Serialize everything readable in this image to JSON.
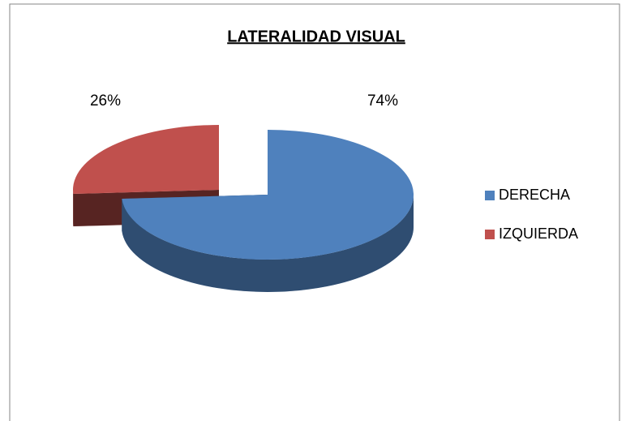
{
  "chart_data": {
    "type": "pie",
    "title": "LATERALIDAD VISUAL",
    "categories": [
      "DERECHA",
      "IZQUIERDA"
    ],
    "values": [
      74,
      26
    ],
    "value_labels": [
      "74%",
      "26%"
    ],
    "colors": [
      "#4f81bd",
      "#c0504d"
    ],
    "legend": "right"
  }
}
